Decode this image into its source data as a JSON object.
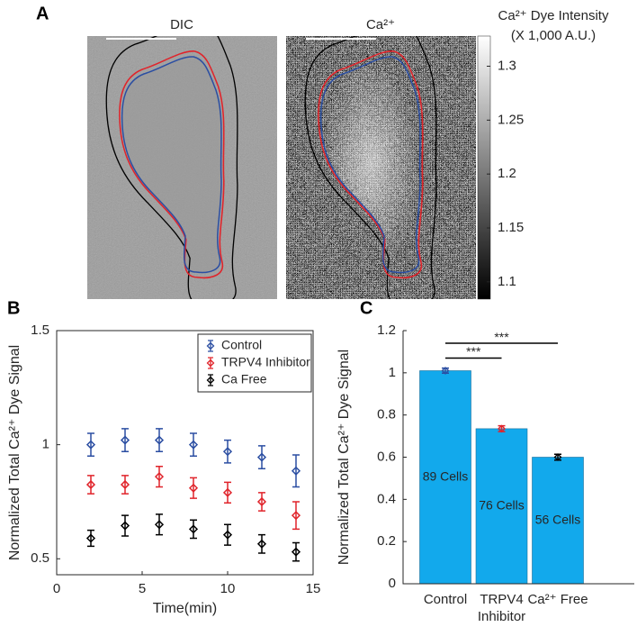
{
  "panel_a": {
    "label": "A",
    "images": [
      {
        "title": "DIC"
      },
      {
        "title": "Ca²⁺"
      }
    ],
    "colorbar": {
      "title": "Ca²⁺ Dye Intensity",
      "subtitle": "(X 1,000 A.U.)",
      "lim": [
        1.084,
        1.328
      ],
      "ticks": [
        1.1,
        1.15,
        1.2,
        1.25,
        1.3
      ]
    }
  },
  "chart_data": [
    {
      "label": "B",
      "type": "scatter",
      "ylabel": "Normalized Total Ca²⁺ Dye Signal",
      "xlabel": "Time(min)",
      "x": [
        2,
        4,
        6,
        8,
        10,
        12,
        14
      ],
      "xlim": [
        0,
        15
      ],
      "xticks": [
        0,
        5,
        10,
        15
      ],
      "ylim": [
        0.43,
        1.5
      ],
      "yticks": [
        0.5,
        1,
        1.5
      ],
      "legend": "upper right",
      "series": [
        {
          "name": "Control",
          "color": "#2b4ea2",
          "values": [
            1.0,
            1.02,
            1.02,
            1.0,
            0.97,
            0.945,
            0.885
          ],
          "errors": [
            0.05,
            0.05,
            0.05,
            0.05,
            0.05,
            0.05,
            0.07
          ]
        },
        {
          "name": "TRPV4 Inhibitor",
          "color": "#e0242b",
          "values": [
            0.825,
            0.825,
            0.86,
            0.81,
            0.79,
            0.75,
            0.69
          ],
          "errors": [
            0.04,
            0.04,
            0.045,
            0.045,
            0.045,
            0.04,
            0.06
          ]
        },
        {
          "name": "Ca Free",
          "color": "#000000",
          "values": [
            0.59,
            0.645,
            0.65,
            0.63,
            0.605,
            0.565,
            0.53
          ],
          "errors": [
            0.035,
            0.045,
            0.045,
            0.04,
            0.045,
            0.04,
            0.04
          ]
        }
      ]
    },
    {
      "label": "C",
      "type": "bar",
      "ylabel": "Normalized Total Ca²⁺ Dye Signal",
      "categories": [
        "Control",
        "TRPV4\nInhibitor",
        "Ca²⁺ Free"
      ],
      "values": [
        1.01,
        0.735,
        0.6
      ],
      "errors": [
        0.012,
        0.014,
        0.014
      ],
      "error_colors": [
        "#2b4ea2",
        "#e0242b",
        "#000000"
      ],
      "bar_texts": [
        "89 Cells",
        "76 Cells",
        "56 Cells"
      ],
      "color": "#12a9ec",
      "ylim": [
        0,
        1.2
      ],
      "yticks": [
        0,
        0.2,
        0.4,
        0.6,
        0.8,
        1,
        1.2
      ],
      "annotations": [
        {
          "text": "***",
          "y": 1.07
        },
        {
          "text": "***",
          "y": 1.14
        }
      ]
    }
  ]
}
